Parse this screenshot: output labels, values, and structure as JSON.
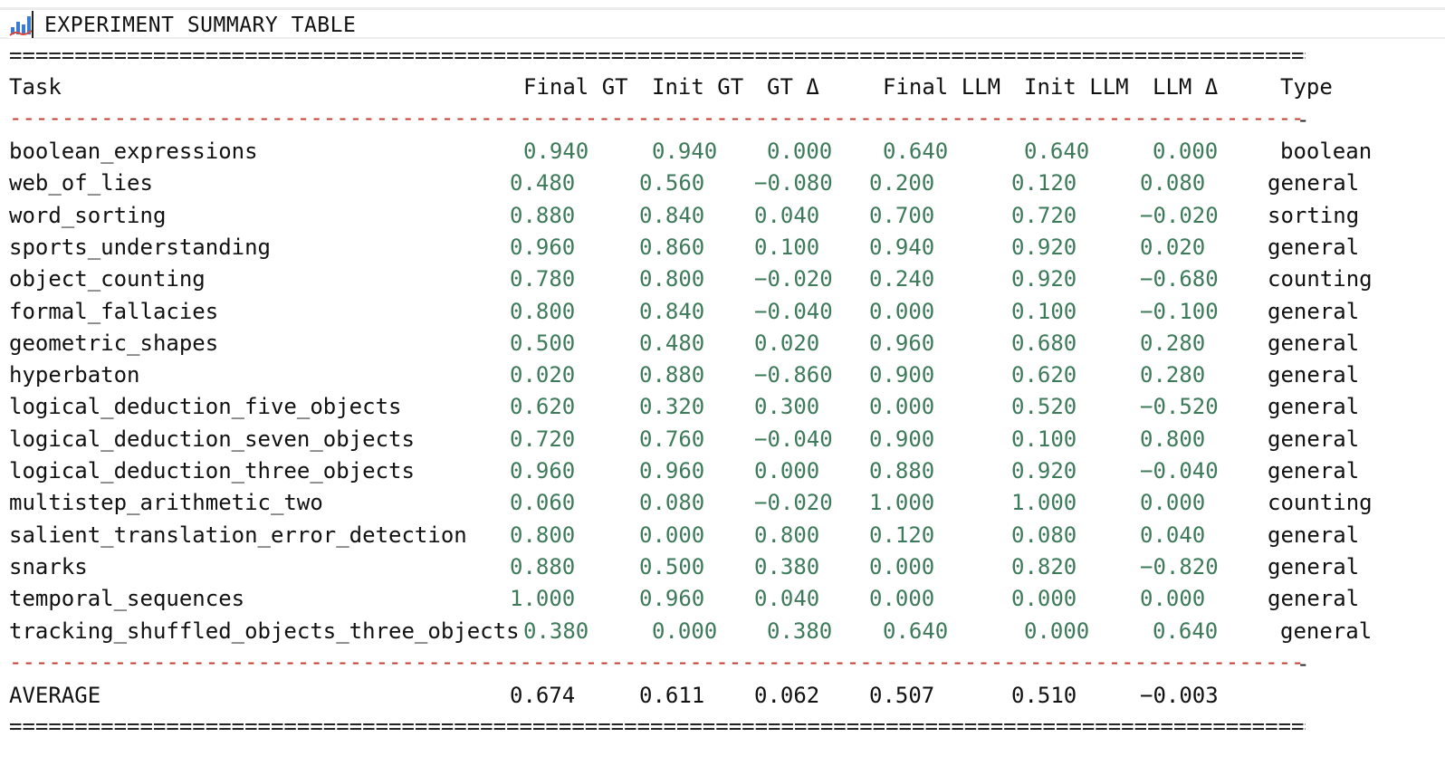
{
  "window": {
    "title": "EXPERIMENT SUMMARY TABLE",
    "icon": "bar-chart-icon"
  },
  "separators": {
    "double": "=",
    "dash": "-",
    "end": "-"
  },
  "colors": {
    "numbers": "#3d7a5a",
    "dash_rule": "#c0392b",
    "text": "#111111"
  },
  "table": {
    "headers": [
      "Task",
      "Final GT",
      "Init GT",
      "GT Δ",
      "Final LLM",
      "Init LLM",
      "LLM Δ",
      "Type"
    ],
    "rows": [
      {
        "task": "boolean_expressions",
        "final_gt": "0.940",
        "init_gt": "0.940",
        "gt_delta": "0.000",
        "final_llm": "0.640",
        "init_llm": "0.640",
        "llm_delta": "0.000",
        "type": "boolean"
      },
      {
        "task": "web_of_lies",
        "final_gt": "0.480",
        "init_gt": "0.560",
        "gt_delta": "-0.080",
        "final_llm": "0.200",
        "init_llm": "0.120",
        "llm_delta": "0.080",
        "type": "general"
      },
      {
        "task": "word_sorting",
        "final_gt": "0.880",
        "init_gt": "0.840",
        "gt_delta": "0.040",
        "final_llm": "0.700",
        "init_llm": "0.720",
        "llm_delta": "-0.020",
        "type": "sorting"
      },
      {
        "task": "sports_understanding",
        "final_gt": "0.960",
        "init_gt": "0.860",
        "gt_delta": "0.100",
        "final_llm": "0.940",
        "init_llm": "0.920",
        "llm_delta": "0.020",
        "type": "general"
      },
      {
        "task": "object_counting",
        "final_gt": "0.780",
        "init_gt": "0.800",
        "gt_delta": "-0.020",
        "final_llm": "0.240",
        "init_llm": "0.920",
        "llm_delta": "-0.680",
        "type": "counting"
      },
      {
        "task": "formal_fallacies",
        "final_gt": "0.800",
        "init_gt": "0.840",
        "gt_delta": "-0.040",
        "final_llm": "0.000",
        "init_llm": "0.100",
        "llm_delta": "-0.100",
        "type": "general"
      },
      {
        "task": "geometric_shapes",
        "final_gt": "0.500",
        "init_gt": "0.480",
        "gt_delta": "0.020",
        "final_llm": "0.960",
        "init_llm": "0.680",
        "llm_delta": "0.280",
        "type": "general"
      },
      {
        "task": "hyperbaton",
        "final_gt": "0.020",
        "init_gt": "0.880",
        "gt_delta": "-0.860",
        "final_llm": "0.900",
        "init_llm": "0.620",
        "llm_delta": "0.280",
        "type": "general"
      },
      {
        "task": "logical_deduction_five_objects",
        "final_gt": "0.620",
        "init_gt": "0.320",
        "gt_delta": "0.300",
        "final_llm": "0.000",
        "init_llm": "0.520",
        "llm_delta": "-0.520",
        "type": "general"
      },
      {
        "task": "logical_deduction_seven_objects",
        "final_gt": "0.720",
        "init_gt": "0.760",
        "gt_delta": "-0.040",
        "final_llm": "0.900",
        "init_llm": "0.100",
        "llm_delta": "0.800",
        "type": "general"
      },
      {
        "task": "logical_deduction_three_objects",
        "final_gt": "0.960",
        "init_gt": "0.960",
        "gt_delta": "0.000",
        "final_llm": "0.880",
        "init_llm": "0.920",
        "llm_delta": "-0.040",
        "type": "general"
      },
      {
        "task": "multistep_arithmetic_two",
        "final_gt": "0.060",
        "init_gt": "0.080",
        "gt_delta": "-0.020",
        "final_llm": "1.000",
        "init_llm": "1.000",
        "llm_delta": "0.000",
        "type": "counting"
      },
      {
        "task": "salient_translation_error_detection",
        "final_gt": "0.800",
        "init_gt": "0.000",
        "gt_delta": "0.800",
        "final_llm": "0.120",
        "init_llm": "0.080",
        "llm_delta": "0.040",
        "type": "general"
      },
      {
        "task": "snarks",
        "final_gt": "0.880",
        "init_gt": "0.500",
        "gt_delta": "0.380",
        "final_llm": "0.000",
        "init_llm": "0.820",
        "llm_delta": "-0.820",
        "type": "general"
      },
      {
        "task": "temporal_sequences",
        "final_gt": "1.000",
        "init_gt": "0.960",
        "gt_delta": "0.040",
        "final_llm": "0.000",
        "init_llm": "0.000",
        "llm_delta": "0.000",
        "type": "general"
      },
      {
        "task": "tracking_shuffled_objects_three_objects",
        "final_gt": "0.380",
        "init_gt": "0.000",
        "gt_delta": "0.380",
        "final_llm": "0.640",
        "init_llm": "0.000",
        "llm_delta": "0.640",
        "type": "general"
      }
    ],
    "average": {
      "task": "AVERAGE",
      "final_gt": "0.674",
      "init_gt": "0.611",
      "gt_delta": "0.062",
      "final_llm": "0.507",
      "init_llm": "0.510",
      "llm_delta": "-0.003",
      "type": ""
    }
  }
}
